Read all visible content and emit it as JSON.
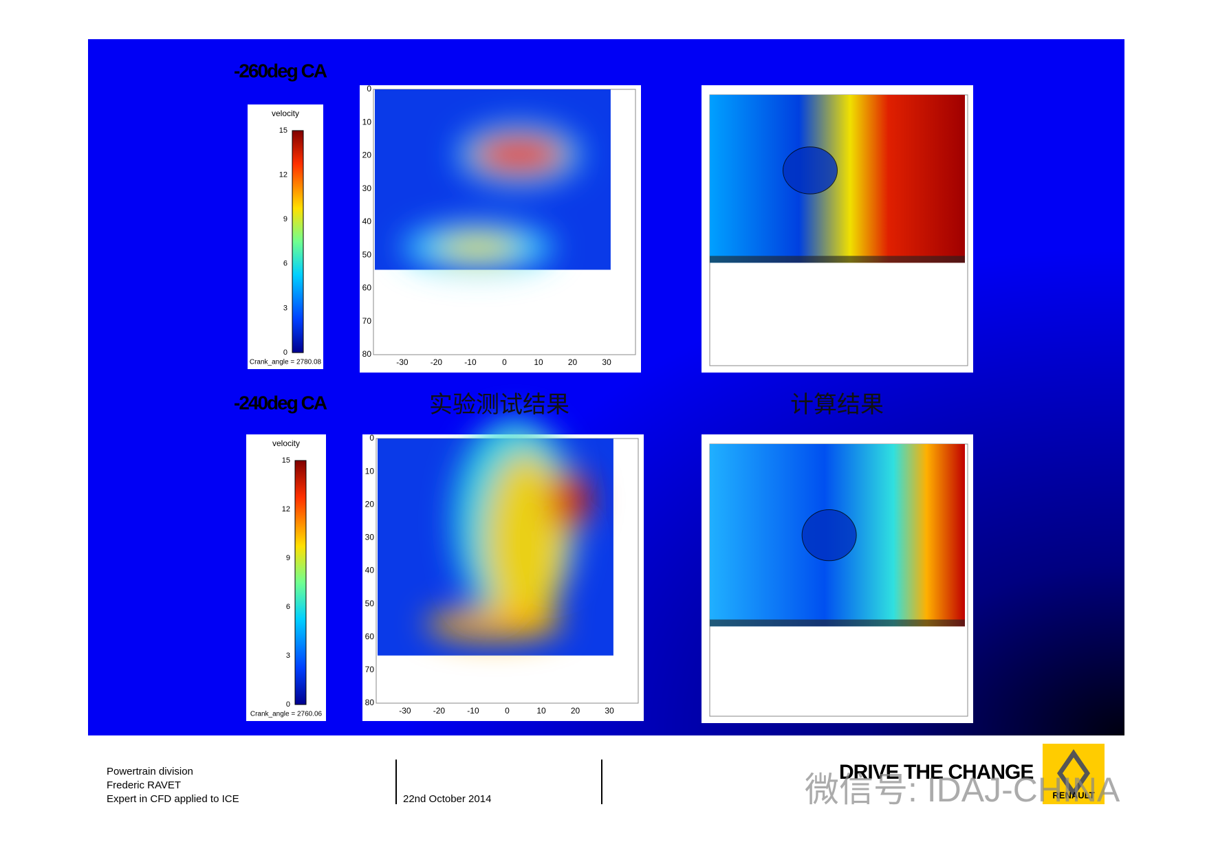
{
  "panels": [
    {
      "label": "-260deg CA",
      "colorbar": {
        "title": "velocity",
        "ticks": [
          15,
          12,
          9,
          6,
          3,
          0
        ],
        "footer": "Crank_angle = 2780.08"
      },
      "plot": {
        "yticks": [
          0,
          10,
          20,
          30,
          40,
          50,
          60,
          70,
          80
        ],
        "xticks": [
          -30,
          -20,
          -10,
          0,
          10,
          20,
          30
        ]
      }
    },
    {
      "label": "-240deg CA",
      "colorbar": {
        "title": "velocity",
        "ticks": [
          15,
          12,
          9,
          6,
          3,
          0
        ],
        "footer": "Crank_angle = 2760.06"
      },
      "plot": {
        "yticks": [
          0,
          10,
          20,
          30,
          40,
          50,
          60,
          70,
          80
        ],
        "xticks": [
          -30,
          -20,
          -10,
          0,
          10,
          20,
          30
        ]
      }
    }
  ],
  "captions": {
    "experiment": "实验测试结果",
    "computation": "计算结果"
  },
  "footer": {
    "lines": [
      "Powertrain division",
      "Frederic RAVET",
      "Expert in CFD applied to ICE"
    ],
    "date": "22nd October  2014",
    "slogan": "DRIVE THE CHANGE",
    "brand": "RENAULT",
    "watermark": "微信号: IDAJ-CHINA"
  }
}
